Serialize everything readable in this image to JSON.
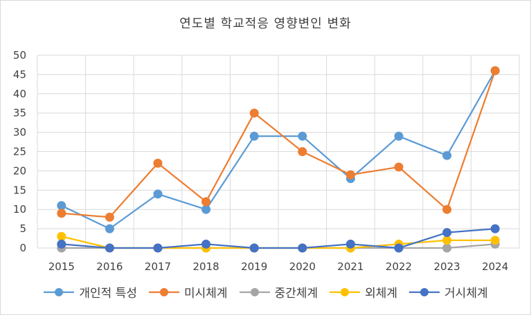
{
  "chart_data": {
    "type": "line",
    "title": "연도별 학교적응 영향변인 변화",
    "categories": [
      "2015",
      "2016",
      "2017",
      "2018",
      "2019",
      "2020",
      "2021",
      "2022",
      "2023",
      "2024"
    ],
    "ylim": [
      0,
      50
    ],
    "yticks": [
      0,
      5,
      10,
      15,
      20,
      25,
      30,
      35,
      40,
      45,
      50
    ],
    "grid": true,
    "legend_position": "bottom",
    "series": [
      {
        "name": "개인적 특성",
        "color": "#5b9bd5",
        "values": [
          11,
          5,
          14,
          10,
          29,
          29,
          18,
          29,
          24,
          46
        ]
      },
      {
        "name": "미시체계",
        "color": "#ed7d31",
        "values": [
          9,
          8,
          22,
          12,
          35,
          25,
          19,
          21,
          10,
          46
        ]
      },
      {
        "name": "중간체계",
        "color": "#a5a5a5",
        "values": [
          0,
          0,
          0,
          0,
          0,
          0,
          0,
          0,
          0,
          1
        ]
      },
      {
        "name": "외체계",
        "color": "#ffc000",
        "values": [
          3,
          0,
          0,
          0,
          0,
          0,
          0,
          1,
          2,
          2
        ]
      },
      {
        "name": "거시체계",
        "color": "#4472c4",
        "values": [
          1,
          0,
          0,
          1,
          0,
          0,
          1,
          0,
          4,
          5
        ]
      }
    ]
  }
}
